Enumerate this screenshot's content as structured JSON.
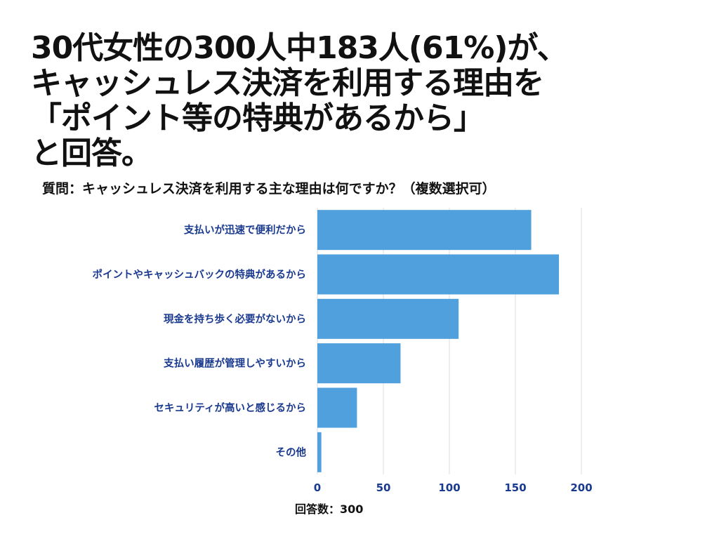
{
  "headline": {
    "line1": "30代女性の300人中183人(61%)が、",
    "line2": "キャッシュレス決済を利用する理由を",
    "line3": "「ポイント等の特典があるから」",
    "line4": "と回答。"
  },
  "question": "質問：キャッシュレス決済を利用する主な理由は何ですか？（複数選択可）",
  "footnote": "回答数：300",
  "colors": {
    "bar": "#4fa0dd",
    "label": "#1a3a8f",
    "grid": "#d9dde3"
  },
  "chart_data": {
    "type": "bar",
    "orientation": "horizontal",
    "title": "",
    "xlabel": "",
    "ylabel": "",
    "xlim": [
      0,
      200
    ],
    "ticks": [
      0,
      50,
      100,
      150,
      200
    ],
    "grid": true,
    "categories": [
      "支払いが迅速で便利だから",
      "ポイントやキャッシュバックの特典があるから",
      "現金を持ち歩く必要がないから",
      "支払い履歴が管理しやすいから",
      "セキュリティが高いと感じるから",
      "その他"
    ],
    "values": [
      162,
      183,
      107,
      63,
      30,
      3
    ]
  }
}
